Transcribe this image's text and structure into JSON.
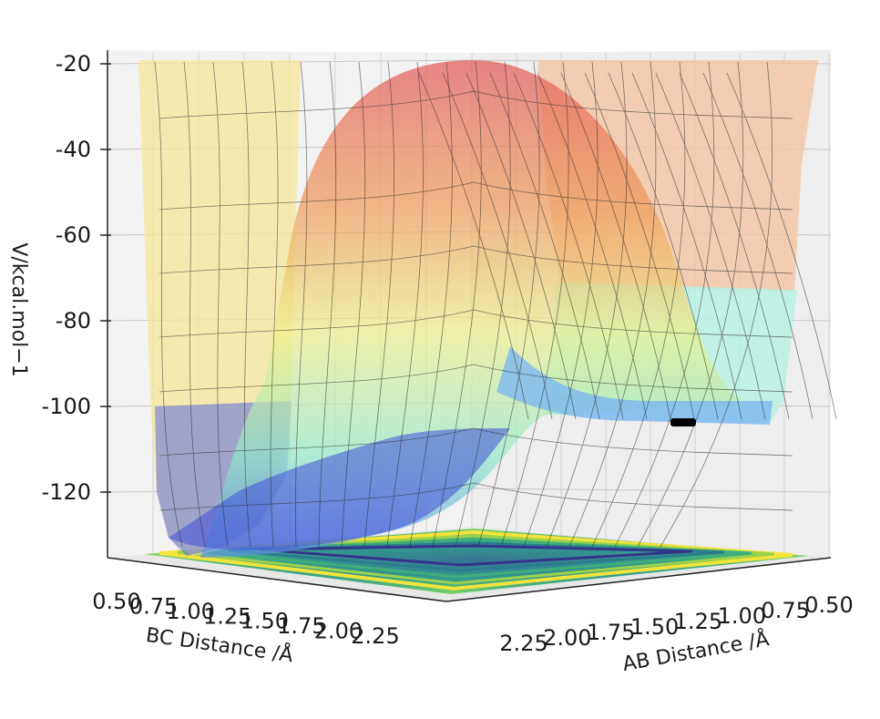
{
  "chart_data": {
    "type": "surface3d",
    "title": "",
    "xlabel": "AB Distance /Å",
    "ylabel": "BC Distance /Å",
    "zlabel": "V/kcal.mol−1",
    "x_ticks": [
      "0.50",
      "0.75",
      "1.00",
      "1.25",
      "1.50",
      "1.75",
      "2.00",
      "2.25"
    ],
    "y_ticks": [
      "0.50",
      "0.75",
      "1.00",
      "1.25",
      "1.50",
      "1.75",
      "2.00",
      "2.25"
    ],
    "z_ticks": [
      "-20",
      "-40",
      "-60",
      "-80",
      "-100",
      "-120"
    ],
    "z_range": [
      -135,
      -20
    ],
    "xy_range": [
      0.5,
      2.25
    ],
    "surface_features": {
      "reactant_well_min_kcal": -130,
      "product_valley_kcal": -102,
      "saddle_kcal": -98,
      "plateau_top_kcal": -20
    },
    "trajectory_point": {
      "ab": 0.6,
      "bc": 2.2,
      "v": -102
    },
    "contour_projection_on_floor": true,
    "colormap": [
      "#3b3fc6",
      "#5b8fe8",
      "#6fd6ee",
      "#c6f0c2",
      "#eef08a",
      "#f2c46a",
      "#ee8a5a",
      "#e35a5a"
    ],
    "grid": true
  }
}
